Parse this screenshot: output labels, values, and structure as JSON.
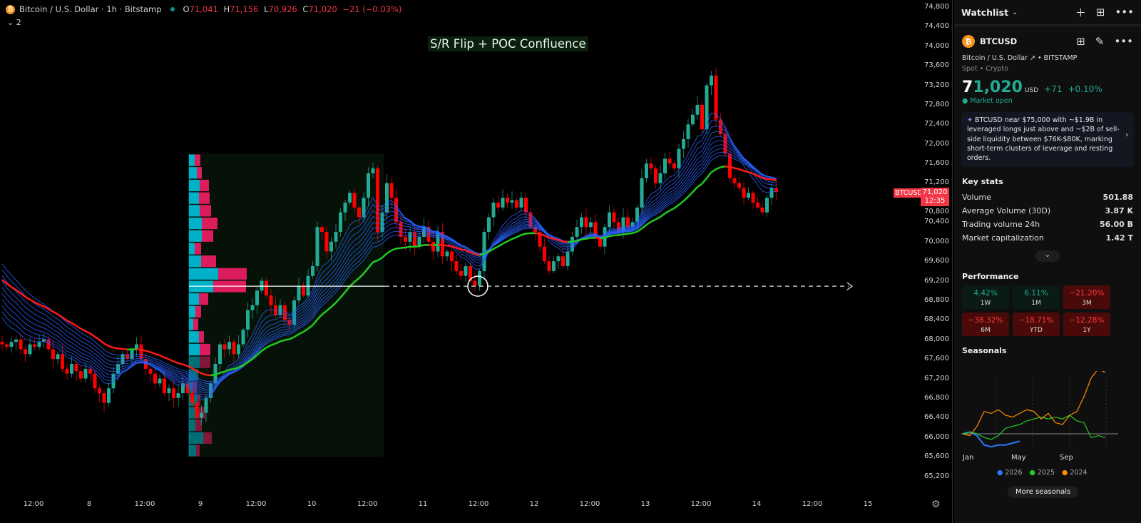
{
  "legend": {
    "symbol_title": "Bitcoin / U.S. Dollar · 1h · Bitstamp",
    "open_label": "O",
    "open": "71,041",
    "high_label": "H",
    "high": "71,156",
    "low_label": "L",
    "low": "70,926",
    "close_label": "C",
    "close": "71,020",
    "change": "−21 (−0.03%)",
    "indicators_count": "2",
    "collapse_icon": "chevron-down-icon"
  },
  "annotation": {
    "title": "S/R Flip + POC Confluence"
  },
  "price_axis": {
    "ticks": [
      "74,800",
      "74,400",
      "74,000",
      "73,600",
      "73,200",
      "72,800",
      "72,400",
      "72,000",
      "71,600",
      "71,200",
      "70,800",
      "70,400",
      "70,000",
      "69,600",
      "69,200",
      "68,800",
      "68,400",
      "68,000",
      "67,600",
      "67,200",
      "66,800",
      "66,400",
      "66,000",
      "65,600",
      "65,200"
    ],
    "last_price": "71,020",
    "countdown": "12:35",
    "symbol_tag": "BTCUSD"
  },
  "time_axis": {
    "ticks": [
      "12:00",
      "8",
      "12:00",
      "9",
      "12:00",
      "10",
      "12:00",
      "11",
      "12:00",
      "12",
      "12:00",
      "13",
      "12:00",
      "14",
      "12:00",
      "15"
    ]
  },
  "colors": {
    "up": "#22ab94",
    "down": "#ff0000",
    "ribbon": "#2962ff",
    "ema_up": "#22cc22",
    "ema_down": "#ff1a1a",
    "profile_up": "#00bcd4",
    "profile_down": "#e91e63",
    "poc_line": "#ffffff"
  },
  "chart_data": {
    "type": "candlestick",
    "interval": "1h",
    "closes": [
      67900,
      67850,
      67950,
      68000,
      67800,
      67700,
      67900,
      67850,
      67950,
      68000,
      67800,
      67600,
      67700,
      67400,
      67300,
      67500,
      67350,
      67200,
      67400,
      67300,
      67000,
      66900,
      66700,
      67000,
      67300,
      67500,
      67700,
      67600,
      67800,
      67900,
      67600,
      67400,
      67300,
      67100,
      67200,
      66900,
      67000,
      66800,
      66900,
      67100,
      66900,
      66700,
      66400,
      66500,
      66800,
      67100,
      67500,
      67900,
      67800,
      67950,
      67700,
      67900,
      68200,
      68600,
      68700,
      69000,
      69200,
      68900,
      68700,
      68500,
      68700,
      68400,
      68300,
      68800,
      69100,
      68900,
      69300,
      69500,
      70300,
      70200,
      69800,
      70000,
      70200,
      70600,
      70800,
      71000,
      70700,
      70500,
      70900,
      71400,
      71500,
      70200,
      70600,
      71200,
      70900,
      70400,
      70100,
      70000,
      70200,
      69900,
      70100,
      70300,
      70000,
      69800,
      70200,
      69700,
      69800,
      69600,
      69400,
      69300,
      69500,
      69200,
      69100,
      69400,
      70200,
      70500,
      70800,
      70700,
      70900,
      70800,
      70850,
      70700,
      70900,
      70600,
      70300,
      70200,
      69900,
      69600,
      69400,
      69600,
      69700,
      69500,
      69800,
      70100,
      70300,
      70500,
      70300,
      70400,
      70100,
      69900,
      70300,
      70600,
      70400,
      70200,
      70500,
      70300,
      70400,
      70700,
      71300,
      71600,
      71500,
      71200,
      71400,
      71700,
      71600,
      71500,
      71900,
      72100,
      72400,
      72600,
      72800,
      72300,
      73200,
      73400,
      72500,
      72200,
      71800,
      71300,
      71200,
      71100,
      70900,
      71000,
      70800,
      70700,
      70600,
      70900,
      71100,
      71020
    ],
    "poc_price": 69090,
    "volume_profile": {
      "top": 71800,
      "bottom": 65600,
      "rows": [
        [
          8,
          8
        ],
        [
          11,
          7
        ],
        [
          15,
          13
        ],
        [
          14,
          15
        ],
        [
          15,
          16
        ],
        [
          18,
          22
        ],
        [
          18,
          16
        ],
        [
          8,
          9
        ],
        [
          17,
          21
        ],
        [
          41,
          40
        ],
        [
          34,
          46
        ],
        [
          14,
          13
        ],
        [
          9,
          8
        ],
        [
          6,
          7
        ],
        [
          14,
          7
        ],
        [
          15,
          15
        ],
        [
          15,
          15
        ],
        [
          13,
          0
        ],
        [
          5,
          6
        ],
        [
          12,
          4
        ],
        [
          13,
          10
        ],
        [
          9,
          9
        ],
        [
          20,
          12
        ],
        [
          10,
          5
        ]
      ]
    }
  },
  "panel": {
    "header": {
      "title": "Watchlist",
      "icons": [
        "plus-icon",
        "layout-icon",
        "more-icon"
      ]
    },
    "symbol": "BTCUSD",
    "name": "Bitcoin / U.S. Dollar",
    "exchange": "BITSTAMP",
    "type": "Spot • Crypto",
    "price_main": "7",
    "price_rest": "1,020",
    "currency": "USD",
    "change": "+71",
    "change_pct": "+0.10%",
    "status": "Market open",
    "news": "BTCUSD near $75,000 with ~$1.9B in leveraged longs just above and ~$2B of sell-side liquidity between $76K-$80K, marking short-term clusters of leverage and resting orders.",
    "key_stats": {
      "title": "Key stats",
      "items": [
        {
          "label": "Volume",
          "value": "501.88"
        },
        {
          "label": "Average Volume (30D)",
          "value": "3.87 K"
        },
        {
          "label": "Trading volume 24h",
          "value": "56.00 B"
        },
        {
          "label": "Market capitalization",
          "value": "1.42 T"
        }
      ]
    },
    "performance": {
      "title": "Performance",
      "items": [
        {
          "value": "4.42%",
          "label": "1W",
          "dir": "up"
        },
        {
          "value": "6.11%",
          "label": "1M",
          "dir": "up"
        },
        {
          "value": "−21.20%",
          "label": "3M",
          "dir": "down"
        },
        {
          "value": "−38.32%",
          "label": "6M",
          "dir": "down"
        },
        {
          "value": "−18.71%",
          "label": "YTD",
          "dir": "down"
        },
        {
          "value": "−12.28%",
          "label": "1Y",
          "dir": "down"
        }
      ]
    },
    "seasonals": {
      "title": "Seasonals",
      "months": [
        "Jan",
        "May",
        "Sep"
      ],
      "series": [
        {
          "name": "2026",
          "color": "#2979ff",
          "values": [
            0,
            1,
            -1,
            -6,
            -7,
            -6,
            -6,
            -5,
            -4
          ]
        },
        {
          "name": "2025",
          "color": "#22cc22",
          "values": [
            0,
            1,
            0,
            -2,
            -3,
            -1,
            3,
            4,
            5,
            7,
            8,
            9,
            8,
            9,
            8,
            10,
            7,
            6,
            -2,
            -1,
            -2
          ]
        },
        {
          "name": "2024",
          "color": "#ff8f00",
          "values": [
            0,
            -1,
            4,
            12,
            11,
            13,
            10,
            9,
            11,
            13,
            12,
            8,
            11,
            6,
            5,
            10,
            12,
            20,
            30,
            35,
            33
          ]
        }
      ],
      "more_label": "More seasonals"
    }
  }
}
